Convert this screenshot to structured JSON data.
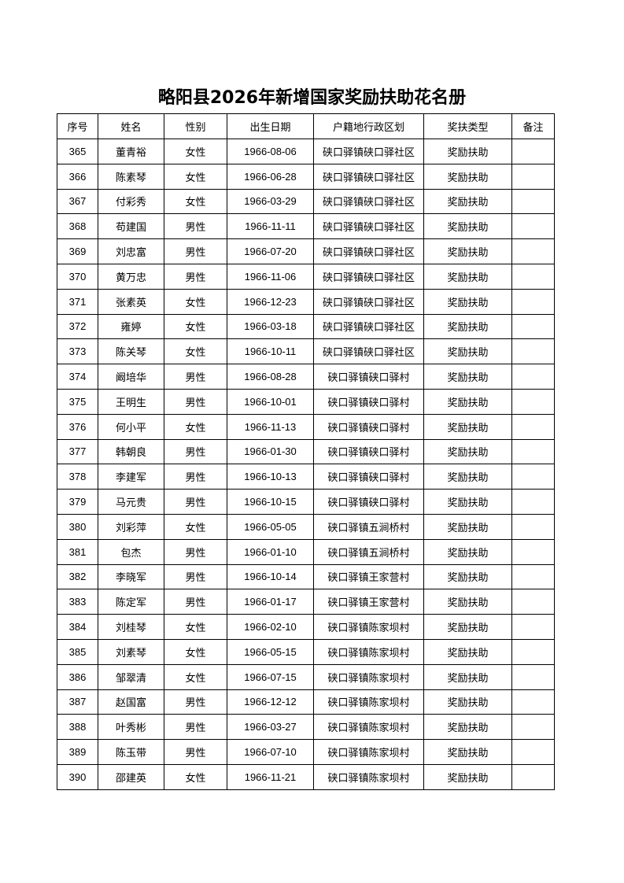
{
  "title": "略阳县2026年新增国家奖励扶助花名册",
  "headers": [
    "序号",
    "姓名",
    "性别",
    "出生日期",
    "户籍地行政区划",
    "奖扶类型",
    "备注"
  ],
  "rows": [
    [
      "365",
      "董青裕",
      "女性",
      "1966-08-06",
      "硖口驿镇硖口驿社区",
      "奖励扶助",
      ""
    ],
    [
      "366",
      "陈素琴",
      "女性",
      "1966-06-28",
      "硖口驿镇硖口驿社区",
      "奖励扶助",
      ""
    ],
    [
      "367",
      "付彩秀",
      "女性",
      "1966-03-29",
      "硖口驿镇硖口驿社区",
      "奖励扶助",
      ""
    ],
    [
      "368",
      "苟建国",
      "男性",
      "1966-11-11",
      "硖口驿镇硖口驿社区",
      "奖励扶助",
      ""
    ],
    [
      "369",
      "刘忠富",
      "男性",
      "1966-07-20",
      "硖口驿镇硖口驿社区",
      "奖励扶助",
      ""
    ],
    [
      "370",
      "黄万忠",
      "男性",
      "1966-11-06",
      "硖口驿镇硖口驿社区",
      "奖励扶助",
      ""
    ],
    [
      "371",
      "张素英",
      "女性",
      "1966-12-23",
      "硖口驿镇硖口驿社区",
      "奖励扶助",
      ""
    ],
    [
      "372",
      "雍婷",
      "女性",
      "1966-03-18",
      "硖口驿镇硖口驿社区",
      "奖励扶助",
      ""
    ],
    [
      "373",
      "陈关琴",
      "女性",
      "1966-10-11",
      "硖口驿镇硖口驿社区",
      "奖励扶助",
      ""
    ],
    [
      "374",
      "阚培华",
      "男性",
      "1966-08-28",
      "硖口驿镇硖口驿村",
      "奖励扶助",
      ""
    ],
    [
      "375",
      "王明生",
      "男性",
      "1966-10-01",
      "硖口驿镇硖口驿村",
      "奖励扶助",
      ""
    ],
    [
      "376",
      "何小平",
      "女性",
      "1966-11-13",
      "硖口驿镇硖口驿村",
      "奖励扶助",
      ""
    ],
    [
      "377",
      "韩朝良",
      "男性",
      "1966-01-30",
      "硖口驿镇硖口驿村",
      "奖励扶助",
      ""
    ],
    [
      "378",
      "李建军",
      "男性",
      "1966-10-13",
      "硖口驿镇硖口驿村",
      "奖励扶助",
      ""
    ],
    [
      "379",
      "马元贵",
      "男性",
      "1966-10-15",
      "硖口驿镇硖口驿村",
      "奖励扶助",
      ""
    ],
    [
      "380",
      "刘彩萍",
      "女性",
      "1966-05-05",
      "硖口驿镇五涧桥村",
      "奖励扶助",
      ""
    ],
    [
      "381",
      "包杰",
      "男性",
      "1966-01-10",
      "硖口驿镇五涧桥村",
      "奖励扶助",
      ""
    ],
    [
      "382",
      "李晓军",
      "男性",
      "1966-10-14",
      "硖口驿镇王家营村",
      "奖励扶助",
      ""
    ],
    [
      "383",
      "陈定军",
      "男性",
      "1966-01-17",
      "硖口驿镇王家营村",
      "奖励扶助",
      ""
    ],
    [
      "384",
      "刘桂琴",
      "女性",
      "1966-02-10",
      "硖口驿镇陈家坝村",
      "奖励扶助",
      ""
    ],
    [
      "385",
      "刘素琴",
      "女性",
      "1966-05-15",
      "硖口驿镇陈家坝村",
      "奖励扶助",
      ""
    ],
    [
      "386",
      "邹翠清",
      "女性",
      "1966-07-15",
      "硖口驿镇陈家坝村",
      "奖励扶助",
      ""
    ],
    [
      "387",
      "赵国富",
      "男性",
      "1966-12-12",
      "硖口驿镇陈家坝村",
      "奖励扶助",
      ""
    ],
    [
      "388",
      "叶秀彬",
      "男性",
      "1966-03-27",
      "硖口驿镇陈家坝村",
      "奖励扶助",
      ""
    ],
    [
      "389",
      "陈玉带",
      "男性",
      "1966-07-10",
      "硖口驿镇陈家坝村",
      "奖励扶助",
      ""
    ],
    [
      "390",
      "邵建英",
      "女性",
      "1966-11-21",
      "硖口驿镇陈家坝村",
      "奖励扶助",
      ""
    ]
  ]
}
